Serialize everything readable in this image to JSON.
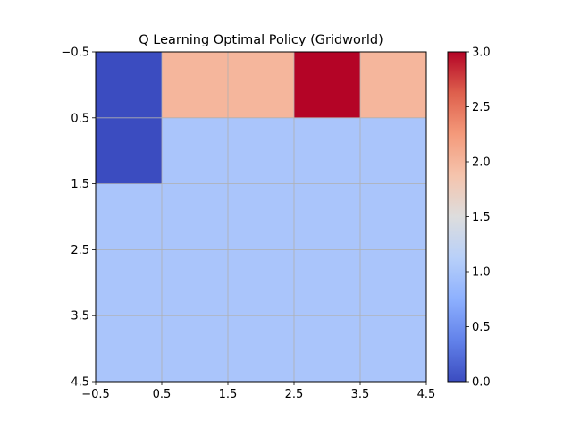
{
  "chart_data": {
    "type": "heatmap",
    "title": "Q Learning Optimal Policy (Gridworld)",
    "xlabel": "",
    "ylabel": "",
    "colormap": "coolwarm",
    "vmin": 0.0,
    "vmax": 3.0,
    "xlim": [
      -0.5,
      4.5
    ],
    "ylim": [
      4.5,
      -0.5
    ],
    "grid": true,
    "values": [
      [
        0,
        2,
        2,
        3,
        2
      ],
      [
        0,
        1,
        1,
        1,
        1
      ],
      [
        1,
        1,
        1,
        1,
        1
      ],
      [
        1,
        1,
        1,
        1,
        1
      ],
      [
        1,
        1,
        1,
        1,
        1
      ]
    ],
    "x_ticks": [
      -0.5,
      0.5,
      1.5,
      2.5,
      3.5,
      4.5
    ],
    "x_tick_labels": [
      "−0.5",
      "0.5",
      "1.5",
      "2.5",
      "3.5",
      "4.5"
    ],
    "y_ticks": [
      -0.5,
      0.5,
      1.5,
      2.5,
      3.5,
      4.5
    ],
    "y_tick_labels": [
      "−0.5",
      "0.5",
      "1.5",
      "2.5",
      "3.5",
      "4.5"
    ],
    "colorbar": {
      "ticks": [
        0.0,
        0.5,
        1.0,
        1.5,
        2.0,
        2.5,
        3.0
      ],
      "tick_labels": [
        "0.0",
        "0.5",
        "1.0",
        "1.5",
        "2.0",
        "2.5",
        "3.0"
      ]
    }
  },
  "colors": {
    "grid": "#b0b0b0",
    "axes": "#000000",
    "background": "#ffffff"
  }
}
